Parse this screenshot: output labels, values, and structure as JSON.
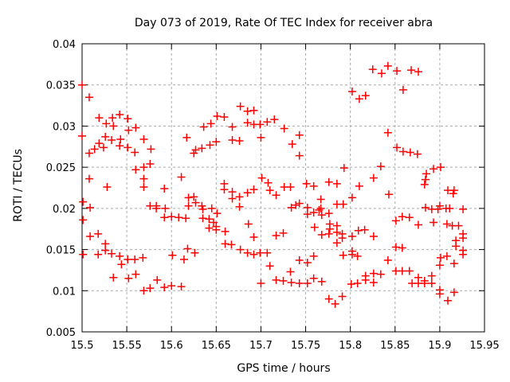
{
  "page": {
    "background": "#ffffff"
  },
  "chart_data": {
    "type": "scatter",
    "title": "Day 073 of 2019, Rate Of TEC Index for receiver abra",
    "xlabel": "GPS time / hours",
    "ylabel": "ROTI / TECUs",
    "xlim": [
      15.5,
      15.95
    ],
    "ylim": [
      0.005,
      0.04
    ],
    "xticks": [
      15.5,
      15.55,
      15.6,
      15.65,
      15.7,
      15.75,
      15.8,
      15.85,
      15.9,
      15.95
    ],
    "xtick_labels": [
      "15.5",
      "15.55",
      "15.6",
      "15.65",
      "15.7",
      "15.75",
      "15.8",
      "15.85",
      "15.9",
      "15.95"
    ],
    "yticks": [
      0.005,
      0.01,
      0.015,
      0.02,
      0.025,
      0.03,
      0.035,
      0.04
    ],
    "ytick_labels": [
      "0.005",
      "0.01",
      "0.015",
      "0.02",
      "0.025",
      "0.03",
      "0.035",
      "0.04"
    ],
    "grid": true,
    "legend": "none",
    "marker": {
      "shape": "plus",
      "color": "#ff0000",
      "size": 10,
      "stroke_width": 1.5
    },
    "colors": {
      "axis": "#000000",
      "grid": "#aaaaaa",
      "text": "#000000",
      "background": "#ffffff"
    },
    "series": [
      {
        "name": "ROTI",
        "points": [
          [
            15.5,
            0.035
          ],
          [
            15.508,
            0.0335
          ],
          [
            15.519,
            0.031
          ],
          [
            15.527,
            0.0303
          ],
          [
            15.534,
            0.031
          ],
          [
            15.535,
            0.03
          ],
          [
            15.542,
            0.0314
          ],
          [
            15.551,
            0.0309
          ],
          [
            15.552,
            0.0295
          ],
          [
            15.56,
            0.0298
          ],
          [
            15.5,
            0.0288
          ],
          [
            15.526,
            0.0287
          ],
          [
            15.533,
            0.0283
          ],
          [
            15.543,
            0.0284
          ],
          [
            15.519,
            0.0279
          ],
          [
            15.514,
            0.0272
          ],
          [
            15.524,
            0.0274
          ],
          [
            15.508,
            0.0267
          ],
          [
            15.542,
            0.0276
          ],
          [
            15.551,
            0.0274
          ],
          [
            15.559,
            0.0268
          ],
          [
            15.569,
            0.0284
          ],
          [
            15.577,
            0.0272
          ],
          [
            15.56,
            0.0247
          ],
          [
            15.569,
            0.025
          ],
          [
            15.576,
            0.0254
          ],
          [
            15.569,
            0.0236
          ],
          [
            15.508,
            0.0236
          ],
          [
            15.528,
            0.0226
          ],
          [
            15.569,
            0.0226
          ],
          [
            15.611,
            0.0238
          ],
          [
            15.592,
            0.0224
          ],
          [
            15.677,
            0.0324
          ],
          [
            15.685,
            0.0318
          ],
          [
            15.692,
            0.0319
          ],
          [
            15.651,
            0.0312
          ],
          [
            15.659,
            0.0311
          ],
          [
            15.644,
            0.0303
          ],
          [
            15.636,
            0.0299
          ],
          [
            15.668,
            0.0299
          ],
          [
            15.685,
            0.0304
          ],
          [
            15.692,
            0.0302
          ],
          [
            15.699,
            0.0302
          ],
          [
            15.707,
            0.0305
          ],
          [
            15.715,
            0.0308
          ],
          [
            15.726,
            0.0297
          ],
          [
            15.617,
            0.0286
          ],
          [
            15.65,
            0.0281
          ],
          [
            15.643,
            0.0277
          ],
          [
            15.668,
            0.0283
          ],
          [
            15.676,
            0.0282
          ],
          [
            15.7,
            0.0286
          ],
          [
            15.634,
            0.0273
          ],
          [
            15.627,
            0.0271
          ],
          [
            15.625,
            0.0267
          ],
          [
            15.659,
            0.023
          ],
          [
            15.659,
            0.0223
          ],
          [
            15.701,
            0.0237
          ],
          [
            15.708,
            0.0231
          ],
          [
            15.692,
            0.0223
          ],
          [
            15.825,
            0.0369
          ],
          [
            15.835,
            0.0364
          ],
          [
            15.802,
            0.0342
          ],
          [
            15.81,
            0.0333
          ],
          [
            15.817,
            0.0337
          ],
          [
            15.743,
            0.0289
          ],
          [
            15.735,
            0.0278
          ],
          [
            15.743,
            0.0264
          ],
          [
            15.793,
            0.0249
          ],
          [
            15.826,
            0.0237
          ],
          [
            15.751,
            0.023
          ],
          [
            15.759,
            0.0227
          ],
          [
            15.776,
            0.0232
          ],
          [
            15.785,
            0.023
          ],
          [
            15.726,
            0.0226
          ],
          [
            15.733,
            0.0226
          ],
          [
            15.81,
            0.0227
          ],
          [
            15.842,
            0.0373
          ],
          [
            15.852,
            0.0367
          ],
          [
            15.868,
            0.0368
          ],
          [
            15.876,
            0.0366
          ],
          [
            15.859,
            0.0344
          ],
          [
            15.842,
            0.0292
          ],
          [
            15.852,
            0.0274
          ],
          [
            15.859,
            0.0269
          ],
          [
            15.867,
            0.0268
          ],
          [
            15.875,
            0.0266
          ],
          [
            15.834,
            0.0251
          ],
          [
            15.901,
            0.025
          ],
          [
            15.893,
            0.0248
          ],
          [
            15.885,
            0.0242
          ],
          [
            15.884,
            0.0235
          ],
          [
            15.883,
            0.0229
          ],
          [
            15.909,
            0.0222
          ],
          [
            15.916,
            0.0222
          ],
          [
            15.501,
            0.0208
          ],
          [
            15.509,
            0.0201
          ],
          [
            15.501,
            0.0186
          ],
          [
            15.509,
            0.0166
          ],
          [
            15.518,
            0.0169
          ],
          [
            15.526,
            0.0157
          ],
          [
            15.526,
            0.0149
          ],
          [
            15.518,
            0.0144
          ],
          [
            15.501,
            0.0144
          ],
          [
            15.533,
            0.0145
          ],
          [
            15.542,
            0.0142
          ],
          [
            15.544,
            0.0132
          ],
          [
            15.551,
            0.0138
          ],
          [
            15.559,
            0.0138
          ],
          [
            15.568,
            0.014
          ],
          [
            15.535,
            0.0116
          ],
          [
            15.552,
            0.0115
          ],
          [
            15.56,
            0.012
          ],
          [
            15.569,
            0.01
          ],
          [
            15.576,
            0.0103
          ],
          [
            15.584,
            0.0113
          ],
          [
            15.592,
            0.0104
          ],
          [
            15.6,
            0.0106
          ],
          [
            15.576,
            0.0203
          ],
          [
            15.583,
            0.0203
          ],
          [
            15.583,
            0.02
          ],
          [
            15.593,
            0.02
          ],
          [
            15.592,
            0.0189
          ],
          [
            15.6,
            0.019
          ],
          [
            15.608,
            0.0189
          ],
          [
            15.616,
            0.0188
          ],
          [
            15.601,
            0.0143
          ],
          [
            15.614,
            0.0138
          ],
          [
            15.611,
            0.0105
          ],
          [
            15.619,
            0.0213
          ],
          [
            15.625,
            0.0214
          ],
          [
            15.627,
            0.0207
          ],
          [
            15.619,
            0.0203
          ],
          [
            15.634,
            0.0203
          ],
          [
            15.635,
            0.0199
          ],
          [
            15.645,
            0.02
          ],
          [
            15.668,
            0.022
          ],
          [
            15.668,
            0.0212
          ],
          [
            15.676,
            0.0214
          ],
          [
            15.685,
            0.0219
          ],
          [
            15.676,
            0.0202
          ],
          [
            15.71,
            0.0222
          ],
          [
            15.717,
            0.0216
          ],
          [
            15.651,
            0.0194
          ],
          [
            15.635,
            0.0188
          ],
          [
            15.642,
            0.0187
          ],
          [
            15.647,
            0.0183
          ],
          [
            15.642,
            0.0176
          ],
          [
            15.65,
            0.0178
          ],
          [
            15.65,
            0.0174
          ],
          [
            15.66,
            0.0172
          ],
          [
            15.686,
            0.0181
          ],
          [
            15.66,
            0.0157
          ],
          [
            15.667,
            0.0156
          ],
          [
            15.692,
            0.0165
          ],
          [
            15.717,
            0.0167
          ],
          [
            15.725,
            0.017
          ],
          [
            15.677,
            0.015
          ],
          [
            15.685,
            0.0146
          ],
          [
            15.692,
            0.0144
          ],
          [
            15.699,
            0.0146
          ],
          [
            15.707,
            0.0146
          ],
          [
            15.618,
            0.0151
          ],
          [
            15.626,
            0.0146
          ],
          [
            15.71,
            0.013
          ],
          [
            15.7,
            0.0109
          ],
          [
            15.717,
            0.0113
          ],
          [
            15.725,
            0.0112
          ],
          [
            15.802,
            0.0213
          ],
          [
            15.767,
            0.0211
          ],
          [
            15.743,
            0.0206
          ],
          [
            15.734,
            0.0201
          ],
          [
            15.739,
            0.0204
          ],
          [
            15.785,
            0.0205
          ],
          [
            15.792,
            0.0205
          ],
          [
            15.752,
            0.0201
          ],
          [
            15.752,
            0.0193
          ],
          [
            15.759,
            0.0195
          ],
          [
            15.765,
            0.0198
          ],
          [
            15.767,
            0.02
          ],
          [
            15.768,
            0.0192
          ],
          [
            15.776,
            0.0194
          ],
          [
            15.76,
            0.0177
          ],
          [
            15.777,
            0.0181
          ],
          [
            15.777,
            0.0175
          ],
          [
            15.785,
            0.0179
          ],
          [
            15.785,
            0.0171
          ],
          [
            15.768,
            0.0168
          ],
          [
            15.776,
            0.0169
          ],
          [
            15.791,
            0.0169
          ],
          [
            15.791,
            0.0164
          ],
          [
            15.802,
            0.0166
          ],
          [
            15.809,
            0.0173
          ],
          [
            15.816,
            0.0174
          ],
          [
            15.826,
            0.0166
          ],
          [
            15.785,
            0.0158
          ],
          [
            15.802,
            0.0148
          ],
          [
            15.792,
            0.0143
          ],
          [
            15.802,
            0.0144
          ],
          [
            15.808,
            0.0142
          ],
          [
            15.743,
            0.0137
          ],
          [
            15.752,
            0.0134
          ],
          [
            15.759,
            0.0142
          ],
          [
            15.733,
            0.0123
          ],
          [
            15.759,
            0.0115
          ],
          [
            15.768,
            0.0111
          ],
          [
            15.734,
            0.011
          ],
          [
            15.743,
            0.0109
          ],
          [
            15.752,
            0.0109
          ],
          [
            15.801,
            0.0108
          ],
          [
            15.808,
            0.0109
          ],
          [
            15.817,
            0.0113
          ],
          [
            15.817,
            0.0118
          ],
          [
            15.826,
            0.0121
          ],
          [
            15.834,
            0.012
          ],
          [
            15.826,
            0.011
          ],
          [
            15.776,
            0.009
          ],
          [
            15.783,
            0.0084
          ],
          [
            15.791,
            0.0093
          ],
          [
            15.843,
            0.0217
          ],
          [
            15.915,
            0.0218
          ],
          [
            15.884,
            0.0201
          ],
          [
            15.891,
            0.0199
          ],
          [
            15.898,
            0.0199
          ],
          [
            15.9,
            0.0203
          ],
          [
            15.907,
            0.02
          ],
          [
            15.911,
            0.02
          ],
          [
            15.926,
            0.0199
          ],
          [
            15.858,
            0.019
          ],
          [
            15.866,
            0.0189
          ],
          [
            15.851,
            0.0185
          ],
          [
            15.876,
            0.018
          ],
          [
            15.893,
            0.0183
          ],
          [
            15.908,
            0.0181
          ],
          [
            15.914,
            0.0179
          ],
          [
            15.921,
            0.0179
          ],
          [
            15.926,
            0.0169
          ],
          [
            15.926,
            0.0164
          ],
          [
            15.918,
            0.0161
          ],
          [
            15.918,
            0.0154
          ],
          [
            15.851,
            0.0153
          ],
          [
            15.858,
            0.0152
          ],
          [
            15.926,
            0.0149
          ],
          [
            15.926,
            0.0144
          ],
          [
            15.842,
            0.0137
          ],
          [
            15.901,
            0.014
          ],
          [
            15.908,
            0.0142
          ],
          [
            15.9,
            0.0131
          ],
          [
            15.916,
            0.0133
          ],
          [
            15.851,
            0.0124
          ],
          [
            15.858,
            0.0124
          ],
          [
            15.866,
            0.0124
          ],
          [
            15.876,
            0.0116
          ],
          [
            15.883,
            0.0112
          ],
          [
            15.891,
            0.0118
          ],
          [
            15.869,
            0.0109
          ],
          [
            15.876,
            0.0109
          ],
          [
            15.883,
            0.0109
          ],
          [
            15.891,
            0.0109
          ],
          [
            15.9,
            0.0101
          ],
          [
            15.9,
            0.0096
          ],
          [
            15.916,
            0.0098
          ],
          [
            15.909,
            0.0088
          ]
        ]
      }
    ]
  }
}
